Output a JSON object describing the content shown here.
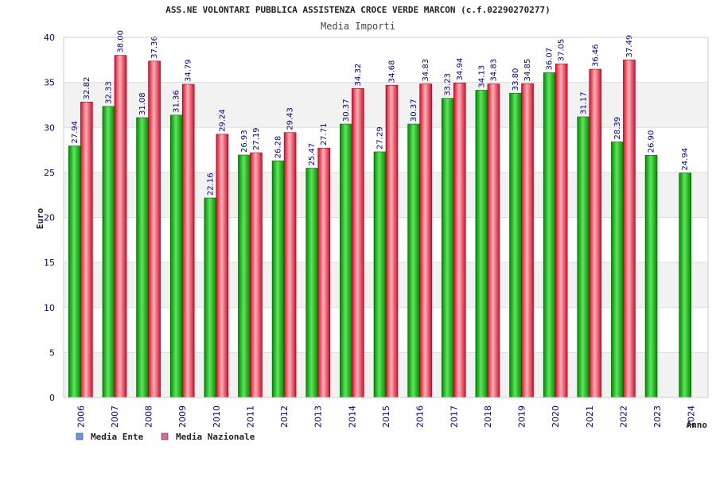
{
  "chart_data": {
    "type": "bar",
    "title": "ASS.NE VOLONTARI PUBBLICA ASSISTENZA CROCE VERDE MARCON (c.f.02290270277)",
    "subtitle": "Media Importi",
    "xlabel": "Anno",
    "ylabel": "Euro",
    "ylim": [
      0,
      40
    ],
    "yticks": [
      0,
      5,
      10,
      15,
      20,
      25,
      30,
      35,
      40
    ],
    "grid": true,
    "legend_position": "bottom-left",
    "categories": [
      "2006",
      "2007",
      "2008",
      "2009",
      "2010",
      "2011",
      "2012",
      "2013",
      "2014",
      "2015",
      "2016",
      "2017",
      "2018",
      "2019",
      "2020",
      "2021",
      "2022",
      "2023",
      "2024"
    ],
    "series": [
      {
        "name": "Media Ente",
        "color": "#00b400",
        "legend_color": "#6699ee",
        "values": [
          27.94,
          32.33,
          31.08,
          31.36,
          22.16,
          26.93,
          26.28,
          25.47,
          30.37,
          27.29,
          30.37,
          33.23,
          34.13,
          33.8,
          36.07,
          31.17,
          28.39,
          26.9,
          24.94
        ],
        "labels": [
          "27.94",
          "32.33",
          "31.08",
          "31.36",
          "22.16",
          "26.93",
          "26.28",
          "25.47",
          "30.37",
          "27.29",
          "30.37",
          "33.23",
          "34.13",
          "33.80",
          "36.07",
          "31.17",
          "28.39",
          "26.90",
          "24.94"
        ]
      },
      {
        "name": "Media Nazionale",
        "color": "#e8303a",
        "legend_color": "#dd6699",
        "values": [
          32.82,
          38.0,
          37.36,
          34.79,
          29.24,
          27.19,
          29.43,
          27.71,
          34.32,
          34.68,
          34.83,
          34.94,
          34.83,
          34.85,
          37.05,
          36.46,
          37.49,
          null,
          null
        ],
        "labels": [
          "32.82",
          "38.00",
          "37.36",
          "34.79",
          "29.24",
          "27.19",
          "29.43",
          "27.71",
          "34.32",
          "34.68",
          "34.83",
          "34.94",
          "34.83",
          "34.85",
          "37.05",
          "36.46",
          "37.49",
          "",
          ""
        ]
      }
    ]
  }
}
